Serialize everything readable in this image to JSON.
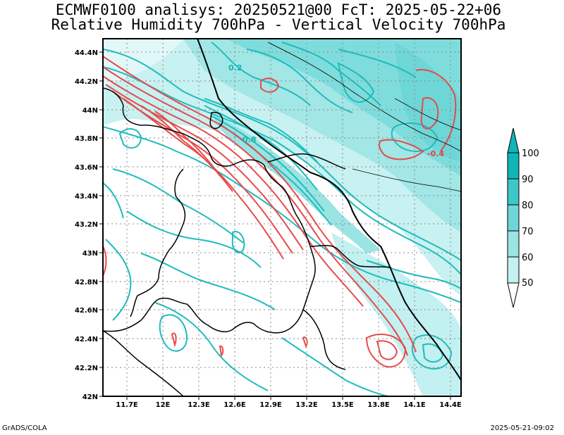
{
  "title": {
    "line1": "ECMWF0100 analisys: 20250521@00 FcT: 2025-05-22+06",
    "line2": "Relative Humidity 700hPa - Vertical Velocity 700hPa"
  },
  "footer": {
    "left": "GrADS/COLA",
    "right": "2025-05-21-09:02"
  },
  "map": {
    "lon_ticks": [
      "11.7E",
      "12E",
      "12.3E",
      "12.6E",
      "12.9E",
      "13.2E",
      "13.5E",
      "13.8E",
      "14.1E",
      "14.4E"
    ],
    "lat_ticks": [
      "42N",
      "42.2N",
      "42.4N",
      "42.6N",
      "42.8N",
      "43N",
      "43.2N",
      "43.4N",
      "43.6N",
      "43.8N",
      "44N",
      "44.2N",
      "44.4N"
    ],
    "contour_labels": [
      {
        "text": "0.2",
        "color": "#14b4b4"
      },
      {
        "text": "0.8",
        "color": "#14b4b4"
      },
      {
        "text": "-0.4",
        "color": "#e84040"
      }
    ]
  },
  "colorbar": {
    "labels": [
      "100",
      "90",
      "80",
      "70",
      "60",
      "50"
    ],
    "colors": [
      "#11b5b5",
      "#3ec7c7",
      "#6ed6d6",
      "#9ae4e4",
      "#c3f0f0",
      "#ffffff"
    ]
  },
  "colors": {
    "humidity_contour": "#1ebcbc",
    "velocity_contour": "#e84a4a",
    "border": "#000000",
    "grid": "#888888"
  }
}
